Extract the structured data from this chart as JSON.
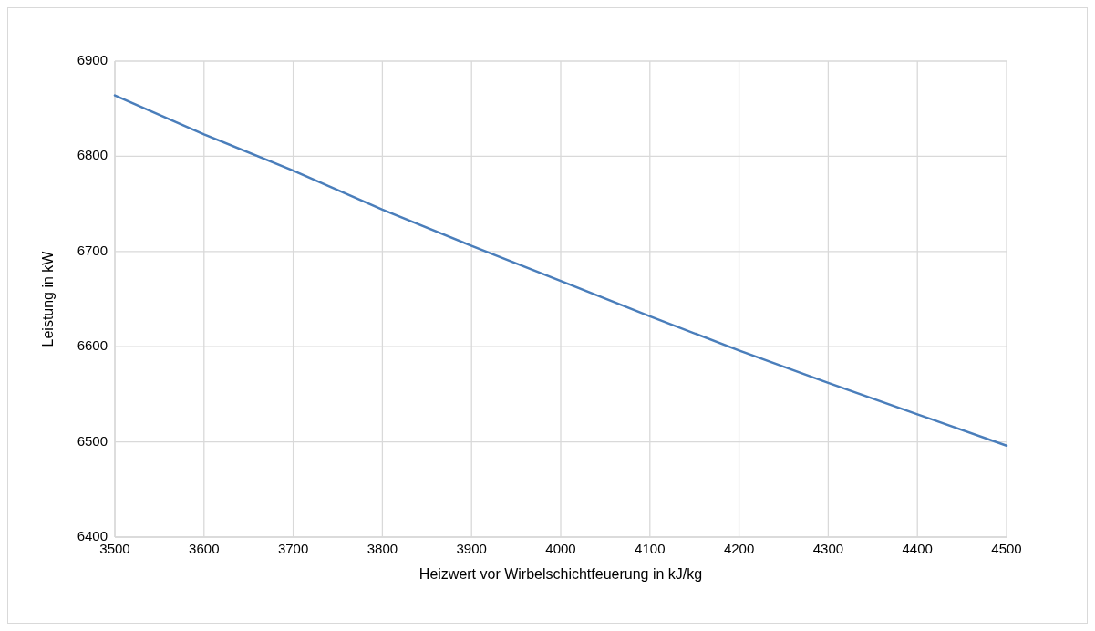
{
  "chart_data": {
    "type": "line",
    "xlabel": "Heizwert vor Wirbelschichtfeuerung in kJ/kg",
    "ylabel": "Leistung in kW",
    "x": [
      3500,
      3600,
      3700,
      3800,
      3900,
      4000,
      4100,
      4200,
      4300,
      4400,
      4500
    ],
    "series": [
      {
        "color": "#4a7ebb",
        "values": [
          6864,
          6823,
          6785,
          6744,
          6706,
          6669,
          6632,
          6596,
          6562,
          6529,
          6496
        ]
      }
    ],
    "xlim": [
      3500,
      4500
    ],
    "xticks": [
      3500,
      3600,
      3700,
      3800,
      3900,
      4000,
      4100,
      4200,
      4300,
      4400,
      4500
    ],
    "ylim": [
      6400,
      6900
    ],
    "yticks": [
      6400,
      6500,
      6600,
      6700,
      6800,
      6900
    ],
    "grid": true,
    "marker": "none",
    "line_style": "solid"
  }
}
